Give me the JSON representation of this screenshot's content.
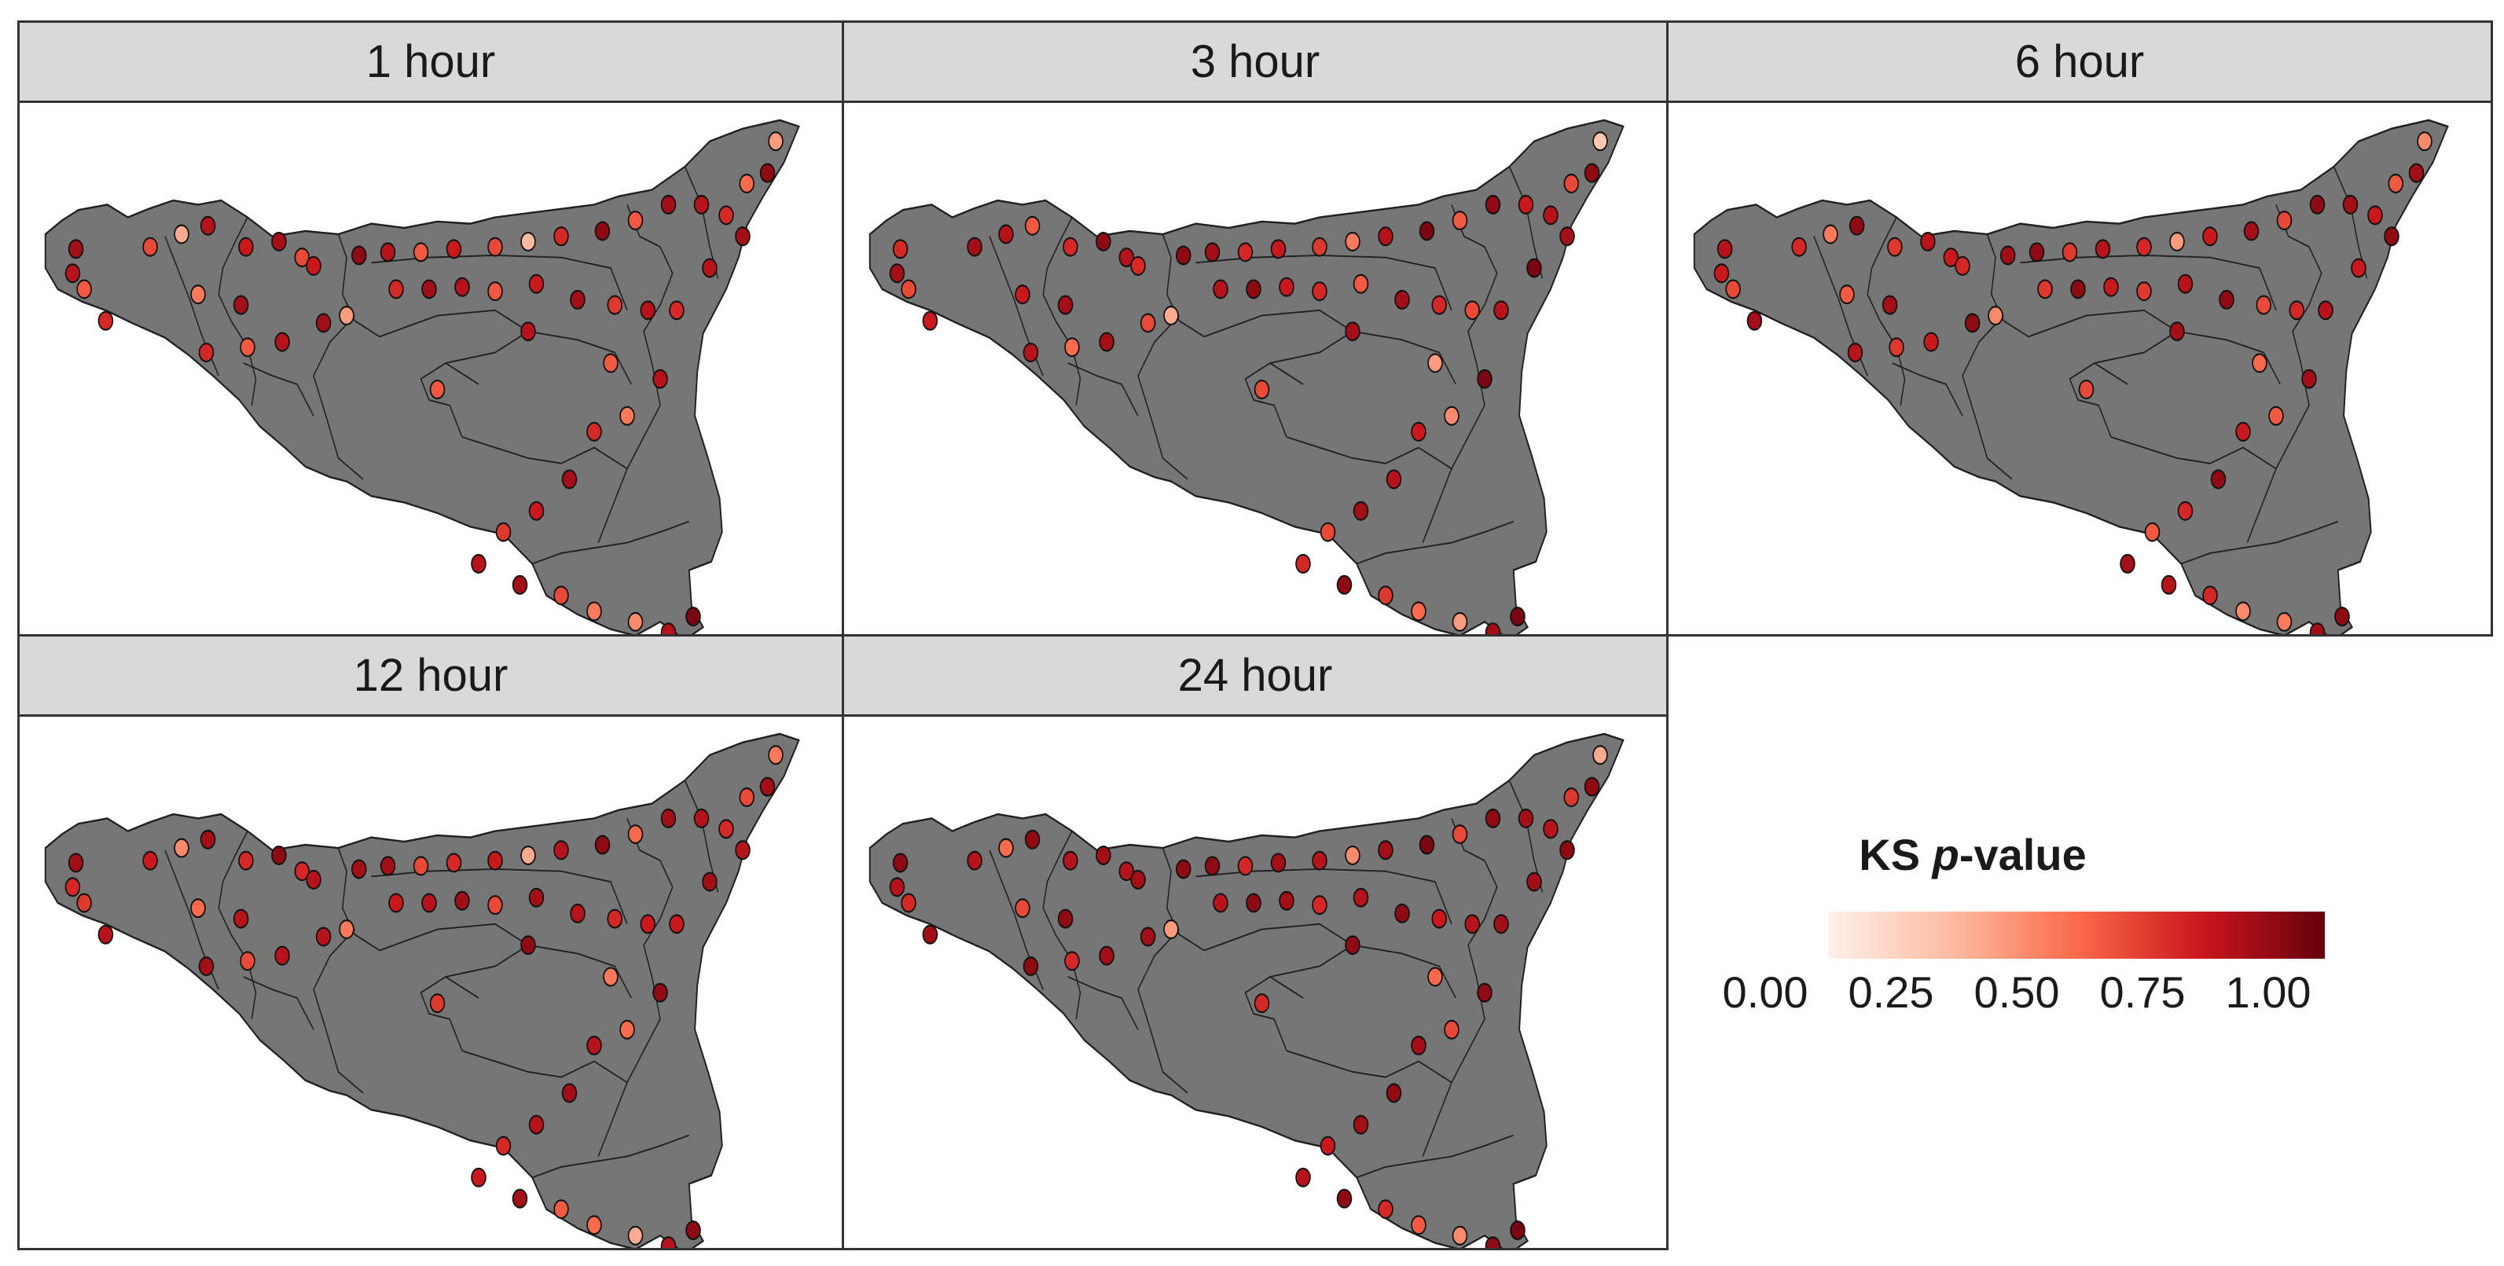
{
  "panels": [
    {
      "label": "1 hour"
    },
    {
      "label": "3 hour"
    },
    {
      "label": "6 hour"
    },
    {
      "label": "12 hour"
    },
    {
      "label": "24 hour"
    }
  ],
  "legend": {
    "title_plain": "KS ",
    "title_italic": "p",
    "title_rest": "-value",
    "ticks": [
      "0.00",
      "0.25",
      "0.50",
      "0.75",
      "1.00"
    ],
    "colors": [
      "#fff0ea",
      "#fcbba1",
      "#fb6a4a",
      "#cb181d",
      "#67000d"
    ]
  },
  "map_colors": {
    "land": "#767676",
    "border": "#1f1f1f"
  },
  "station_pvalues": {
    "1 hour": [
      0.85,
      0.8,
      0.55,
      0.7,
      0.6,
      0.3,
      0.8,
      0.75,
      0.85,
      0.6,
      0.45,
      0.85,
      0.55,
      0.7,
      0.8,
      0.85,
      0.35,
      0.75,
      0.9,
      0.8,
      0.55,
      0.75,
      0.6,
      0.25,
      0.7,
      0.9,
      0.55,
      0.85,
      0.8,
      0.7,
      0.5,
      0.9,
      0.35,
      0.85,
      0.8,
      0.7,
      0.8,
      0.65,
      0.85,
      0.75,
      0.55,
      0.8,
      0.85,
      0.7,
      0.8,
      0.55,
      0.8,
      0.45,
      0.7,
      0.85,
      0.75,
      0.65,
      0.8,
      0.85,
      0.6,
      0.45,
      0.4,
      0.8,
      0.95,
      0.55
    ],
    "3 hour": [
      0.7,
      0.85,
      0.6,
      0.75,
      0.85,
      0.8,
      0.55,
      0.7,
      0.9,
      0.8,
      0.75,
      0.85,
      0.5,
      0.8,
      0.85,
      0.6,
      0.3,
      0.7,
      0.9,
      0.85,
      0.7,
      0.75,
      0.65,
      0.45,
      0.8,
      0.95,
      0.55,
      0.9,
      0.75,
      0.8,
      0.6,
      0.9,
      0.2,
      0.85,
      0.95,
      0.8,
      0.6,
      0.7,
      0.85,
      0.55,
      0.7,
      0.75,
      0.9,
      0.8,
      0.85,
      0.35,
      0.95,
      0.4,
      0.75,
      0.8,
      0.85,
      0.6,
      0.7,
      0.9,
      0.65,
      0.5,
      0.35,
      0.85,
      0.95,
      0.6
    ],
    "6 hour": [
      0.8,
      0.75,
      0.6,
      0.85,
      0.7,
      0.45,
      0.9,
      0.65,
      0.8,
      0.75,
      0.55,
      0.85,
      0.65,
      0.8,
      0.75,
      0.9,
      0.4,
      0.7,
      0.85,
      0.9,
      0.65,
      0.8,
      0.7,
      0.35,
      0.75,
      0.85,
      0.6,
      0.9,
      0.85,
      0.75,
      0.55,
      0.85,
      0.4,
      0.9,
      0.75,
      0.8,
      0.7,
      0.6,
      0.9,
      0.8,
      0.65,
      0.75,
      0.9,
      0.65,
      0.85,
      0.5,
      0.85,
      0.55,
      0.75,
      0.9,
      0.7,
      0.55,
      0.85,
      0.8,
      0.7,
      0.4,
      0.45,
      0.85,
      0.9,
      0.6
    ],
    "12 hour": [
      0.85,
      0.7,
      0.65,
      0.8,
      0.75,
      0.4,
      0.85,
      0.7,
      0.9,
      0.7,
      0.5,
      0.8,
      0.6,
      0.85,
      0.8,
      0.8,
      0.45,
      0.8,
      0.85,
      0.85,
      0.6,
      0.7,
      0.75,
      0.3,
      0.8,
      0.9,
      0.5,
      0.85,
      0.8,
      0.7,
      0.6,
      0.85,
      0.45,
      0.8,
      0.85,
      0.75,
      0.75,
      0.7,
      0.8,
      0.85,
      0.6,
      0.85,
      0.8,
      0.75,
      0.9,
      0.45,
      0.9,
      0.5,
      0.8,
      0.85,
      0.8,
      0.7,
      0.75,
      0.85,
      0.55,
      0.5,
      0.3,
      0.8,
      0.9,
      0.65
    ],
    "24 hour": [
      0.9,
      0.8,
      0.7,
      0.85,
      0.8,
      0.5,
      0.9,
      0.8,
      0.85,
      0.8,
      0.6,
      0.9,
      0.7,
      0.9,
      0.85,
      0.85,
      0.35,
      0.85,
      0.9,
      0.9,
      0.7,
      0.85,
      0.8,
      0.4,
      0.85,
      0.95,
      0.6,
      0.9,
      0.85,
      0.8,
      0.65,
      0.9,
      0.3,
      0.9,
      0.85,
      0.85,
      0.8,
      0.75,
      0.9,
      0.8,
      0.7,
      0.85,
      0.9,
      0.8,
      0.9,
      0.5,
      0.9,
      0.6,
      0.85,
      0.9,
      0.85,
      0.75,
      0.8,
      0.9,
      0.7,
      0.55,
      0.4,
      0.9,
      0.95,
      0.7
    ]
  }
}
